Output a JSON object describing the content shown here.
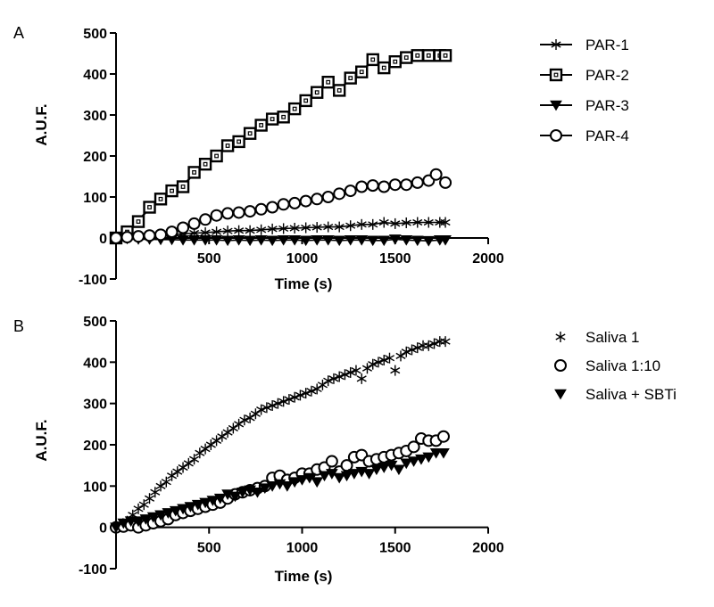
{
  "chart_data": [
    {
      "type": "line",
      "panel_label": "A",
      "xlabel": "Time (s)",
      "ylabel": "A.U.F.",
      "xlim": [
        0,
        2000
      ],
      "ylim": [
        -100,
        500
      ],
      "x_ticks": [
        500,
        1000,
        1500,
        2000
      ],
      "y_ticks": [
        -100,
        0,
        100,
        200,
        300,
        400,
        500
      ],
      "legend_position": "right",
      "series": [
        {
          "name": "PAR-1",
          "marker": "asterisk",
          "line": true,
          "x": [
            0,
            60,
            120,
            180,
            240,
            300,
            360,
            420,
            480,
            540,
            600,
            660,
            720,
            780,
            840,
            900,
            960,
            1020,
            1080,
            1140,
            1200,
            1260,
            1320,
            1380,
            1440,
            1500,
            1560,
            1620,
            1680,
            1740,
            1770
          ],
          "y": [
            0,
            2,
            4,
            5,
            6,
            8,
            10,
            12,
            13,
            15,
            17,
            18,
            18,
            20,
            22,
            23,
            24,
            25,
            26,
            27,
            27,
            30,
            33,
            33,
            38,
            35,
            37,
            38,
            38,
            38,
            38
          ]
        },
        {
          "name": "PAR-2",
          "marker": "square-open",
          "line": true,
          "x": [
            0,
            60,
            120,
            180,
            240,
            300,
            360,
            420,
            480,
            540,
            600,
            660,
            720,
            780,
            840,
            900,
            960,
            1020,
            1080,
            1140,
            1200,
            1260,
            1320,
            1380,
            1440,
            1500,
            1560,
            1620,
            1680,
            1740,
            1770
          ],
          "y": [
            0,
            15,
            40,
            75,
            95,
            115,
            125,
            160,
            180,
            200,
            225,
            235,
            255,
            275,
            290,
            295,
            315,
            335,
            355,
            380,
            360,
            390,
            405,
            435,
            415,
            430,
            440,
            445,
            445,
            445,
            445
          ]
        },
        {
          "name": "PAR-3",
          "marker": "triangle-down-filled",
          "line": true,
          "x": [
            0,
            60,
            120,
            180,
            240,
            300,
            360,
            420,
            480,
            540,
            600,
            660,
            720,
            780,
            840,
            900,
            960,
            1020,
            1080,
            1140,
            1200,
            1260,
            1320,
            1380,
            1440,
            1500,
            1560,
            1620,
            1680,
            1740,
            1770
          ],
          "y": [
            0,
            -2,
            -3,
            -3,
            -4,
            -4,
            -5,
            -5,
            -5,
            -5,
            -6,
            -5,
            -6,
            -5,
            -6,
            -5,
            -5,
            -6,
            -5,
            -5,
            -6,
            -5,
            -5,
            -6,
            -6,
            -3,
            -5,
            -6,
            -7,
            -5,
            -5
          ]
        },
        {
          "name": "PAR-4",
          "marker": "circle-open",
          "line": true,
          "x": [
            0,
            60,
            120,
            180,
            240,
            300,
            360,
            420,
            480,
            540,
            600,
            660,
            720,
            780,
            840,
            900,
            960,
            1020,
            1080,
            1140,
            1200,
            1260,
            1320,
            1380,
            1440,
            1500,
            1560,
            1620,
            1680,
            1720,
            1770
          ],
          "y": [
            0,
            2,
            4,
            6,
            8,
            15,
            25,
            35,
            45,
            55,
            60,
            62,
            65,
            70,
            75,
            82,
            85,
            90,
            95,
            100,
            108,
            115,
            125,
            128,
            125,
            130,
            130,
            135,
            140,
            155,
            135
          ]
        }
      ]
    },
    {
      "type": "scatter",
      "panel_label": "B",
      "xlabel": "Time (s)",
      "ylabel": "A.U.F.",
      "xlim": [
        0,
        2000
      ],
      "ylim": [
        -100,
        500
      ],
      "x_ticks": [
        500,
        1000,
        1500,
        2000
      ],
      "y_ticks": [
        -100,
        0,
        100,
        200,
        300,
        400,
        500
      ],
      "legend_position": "right",
      "series": [
        {
          "name": "Saliva 1",
          "marker": "asterisk",
          "line": false,
          "x": [
            0,
            30,
            60,
            90,
            120,
            150,
            180,
            210,
            240,
            270,
            300,
            330,
            360,
            390,
            420,
            450,
            480,
            510,
            540,
            570,
            600,
            630,
            660,
            690,
            720,
            750,
            780,
            810,
            840,
            870,
            900,
            930,
            960,
            990,
            1020,
            1050,
            1080,
            1110,
            1140,
            1170,
            1200,
            1230,
            1260,
            1290,
            1320,
            1350,
            1380,
            1410,
            1440,
            1470,
            1500,
            1530,
            1560,
            1590,
            1620,
            1650,
            1680,
            1710,
            1740,
            1770
          ],
          "y": [
            0,
            5,
            15,
            30,
            45,
            55,
            70,
            85,
            100,
            110,
            125,
            135,
            145,
            155,
            165,
            180,
            190,
            200,
            210,
            220,
            230,
            240,
            250,
            260,
            265,
            275,
            285,
            290,
            295,
            300,
            305,
            310,
            315,
            320,
            325,
            330,
            335,
            345,
            355,
            360,
            365,
            370,
            375,
            380,
            360,
            385,
            395,
            400,
            405,
            410,
            380,
            415,
            425,
            430,
            435,
            440,
            440,
            445,
            450,
            450
          ]
        },
        {
          "name": "Saliva 1:10",
          "marker": "circle-open",
          "line": false,
          "x": [
            0,
            40,
            80,
            120,
            160,
            200,
            240,
            280,
            320,
            360,
            400,
            440,
            480,
            520,
            560,
            600,
            640,
            680,
            720,
            760,
            800,
            840,
            880,
            920,
            960,
            1000,
            1040,
            1080,
            1120,
            1160,
            1200,
            1240,
            1280,
            1320,
            1360,
            1400,
            1440,
            1480,
            1520,
            1560,
            1600,
            1640,
            1680,
            1720,
            1760
          ],
          "y": [
            0,
            2,
            5,
            0,
            5,
            10,
            15,
            20,
            30,
            35,
            40,
            45,
            50,
            55,
            60,
            70,
            80,
            85,
            90,
            95,
            100,
            120,
            125,
            115,
            120,
            130,
            130,
            140,
            145,
            160,
            135,
            150,
            170,
            175,
            160,
            165,
            170,
            175,
            180,
            185,
            195,
            215,
            210,
            210,
            220
          ]
        },
        {
          "name": "Saliva + SBTi",
          "marker": "triangle-down-filled",
          "line": false,
          "x": [
            0,
            40,
            80,
            120,
            160,
            200,
            240,
            280,
            320,
            360,
            400,
            440,
            480,
            520,
            560,
            600,
            640,
            680,
            720,
            760,
            800,
            840,
            880,
            920,
            960,
            1000,
            1040,
            1080,
            1120,
            1160,
            1200,
            1240,
            1280,
            1320,
            1360,
            1400,
            1440,
            1480,
            1520,
            1560,
            1600,
            1640,
            1680,
            1720,
            1760
          ],
          "y": [
            0,
            10,
            15,
            15,
            20,
            25,
            30,
            35,
            40,
            45,
            50,
            55,
            60,
            65,
            70,
            80,
            75,
            85,
            90,
            85,
            95,
            100,
            105,
            100,
            110,
            115,
            120,
            110,
            125,
            130,
            120,
            125,
            130,
            135,
            130,
            140,
            145,
            150,
            140,
            155,
            160,
            165,
            170,
            180,
            180
          ]
        }
      ]
    }
  ]
}
